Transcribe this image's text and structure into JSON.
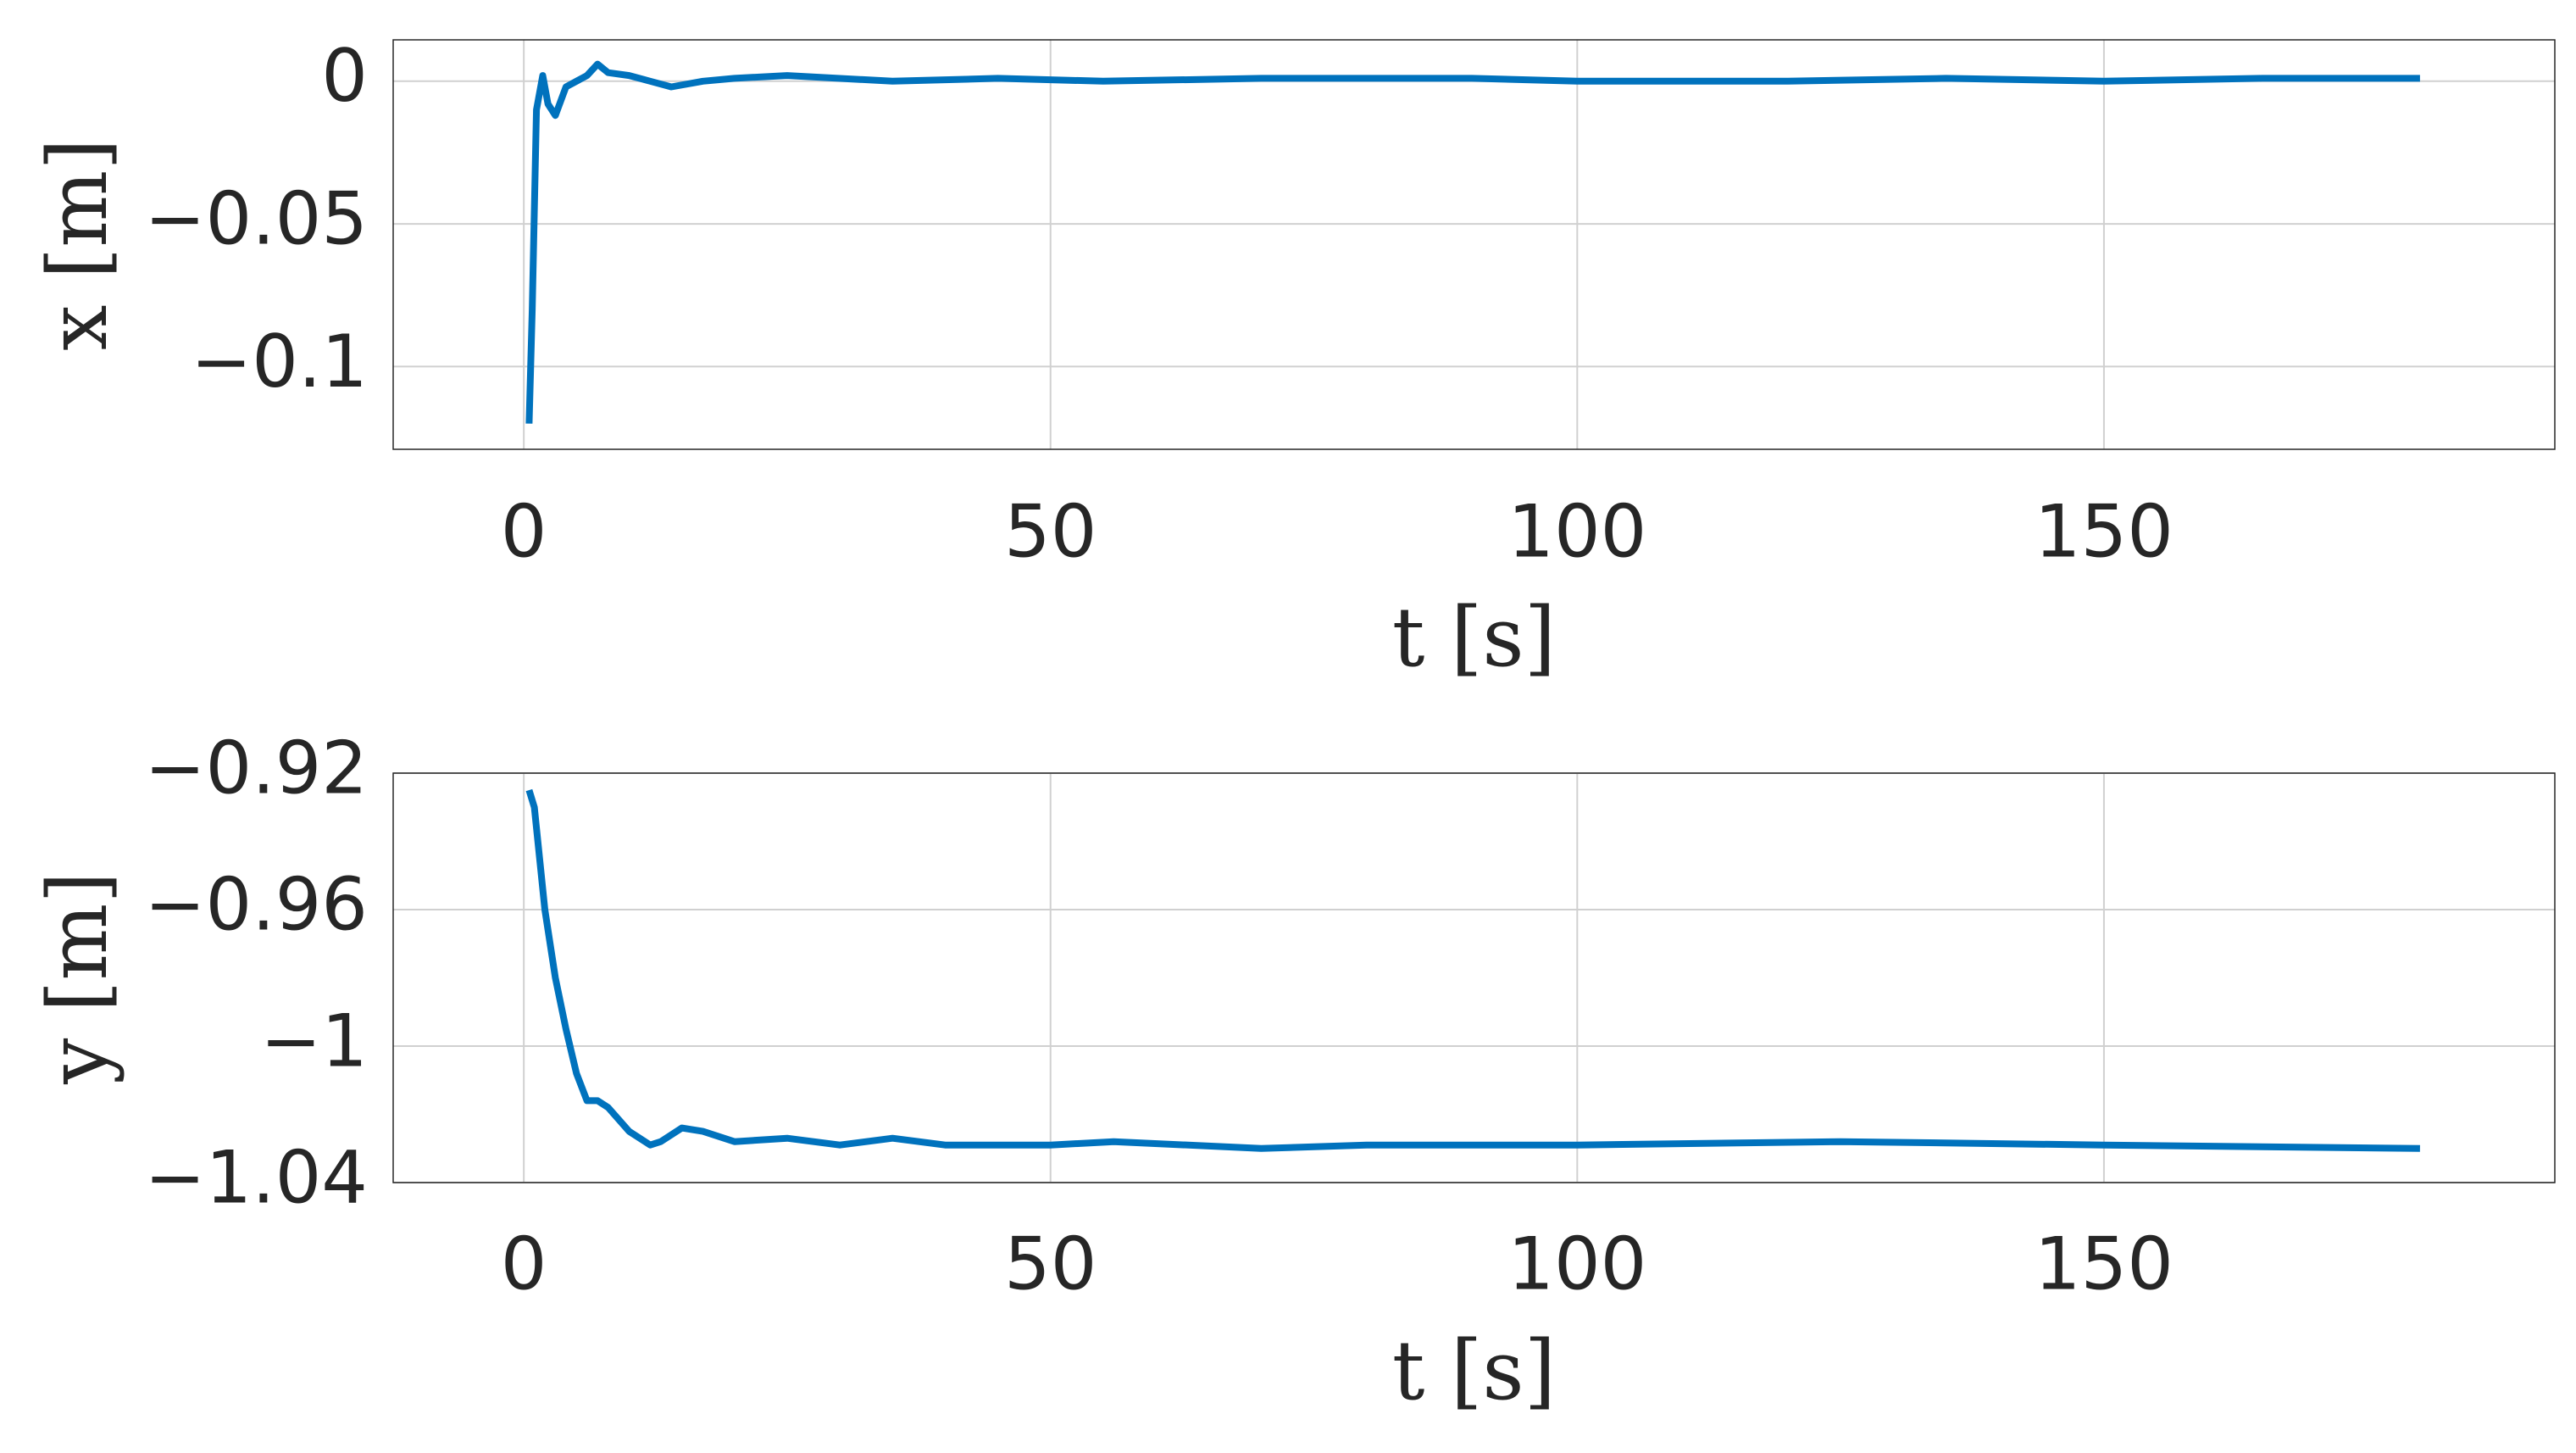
{
  "chart_data": [
    {
      "type": "line",
      "xlabel": "t [s]",
      "ylabel": "x [m]",
      "color": "#0072bd",
      "grid": true,
      "xlim": [
        -12.4,
        192.8
      ],
      "xticks": [
        0,
        50,
        100,
        150
      ],
      "ylim": [
        -0.129,
        0.0145
      ],
      "yticks": [
        {
          "value": -0.1,
          "label": "−0.1"
        },
        {
          "value": -0.05,
          "label": "−0.05"
        },
        0
      ],
      "x": [
        0.5,
        0.8,
        1.2,
        1.8,
        2.3,
        3,
        4,
        5,
        6,
        7,
        8,
        10,
        12,
        14,
        17,
        20,
        25,
        35,
        45,
        55,
        70,
        90,
        100,
        120,
        135,
        150,
        165,
        180
      ],
      "values": [
        -0.12,
        -0.08,
        -0.01,
        0.002,
        -0.008,
        -0.012,
        -0.002,
        0,
        0.002,
        0.006,
        0.003,
        0.002,
        0,
        -0.002,
        0,
        0.001,
        0.002,
        0,
        0.001,
        0,
        0.001,
        0.001,
        0,
        0,
        0.001,
        0,
        0.001,
        0.001
      ]
    },
    {
      "type": "line",
      "xlabel": "t [s]",
      "ylabel": "y [m]",
      "color": "#0072bd",
      "grid": true,
      "xlim": [
        -12.4,
        192.8
      ],
      "xticks": [
        0,
        50,
        100,
        150
      ],
      "ylim": [
        -1.04,
        -0.92
      ],
      "yticks": [
        {
          "value": -1.04,
          "label": "−1.04"
        },
        {
          "value": -1,
          "label": "−1"
        },
        {
          "value": -0.96,
          "label": "−0.96"
        },
        {
          "value": -0.92,
          "label": "−0.92"
        }
      ],
      "x": [
        0.5,
        1,
        2,
        3,
        4,
        5,
        6,
        7,
        8,
        10,
        12,
        13,
        15,
        17,
        20,
        25,
        30,
        35,
        40,
        50,
        56,
        70,
        80,
        100,
        125,
        150,
        180
      ],
      "values": [
        -0.925,
        -0.93,
        -0.96,
        -0.98,
        -0.995,
        -1.008,
        -1.016,
        -1.016,
        -1.018,
        -1.025,
        -1.029,
        -1.028,
        -1.024,
        -1.025,
        -1.028,
        -1.027,
        -1.029,
        -1.027,
        -1.029,
        -1.029,
        -1.028,
        -1.03,
        -1.029,
        -1.029,
        -1.028,
        -1.029,
        -1.03
      ]
    }
  ]
}
